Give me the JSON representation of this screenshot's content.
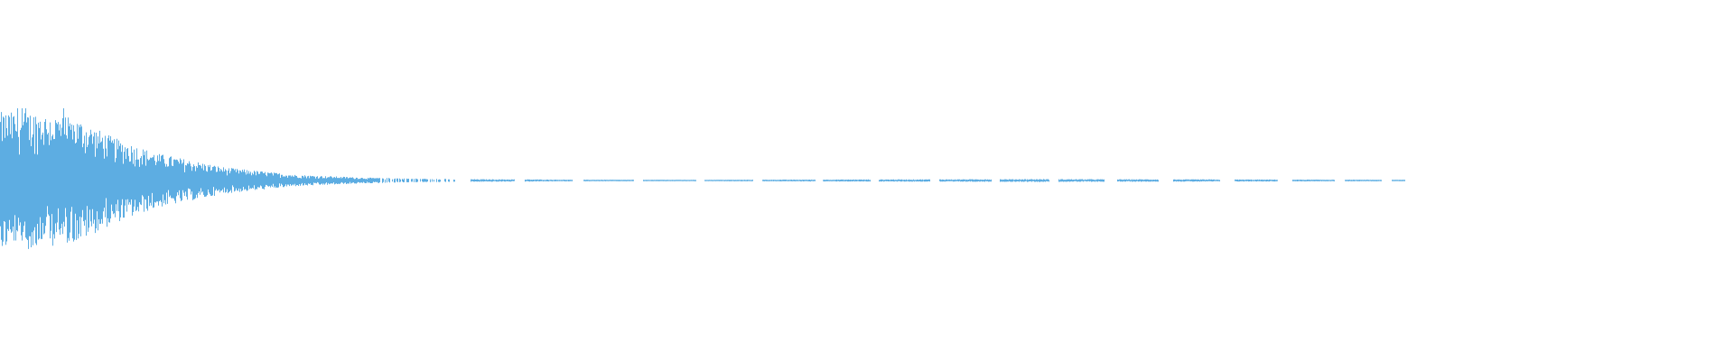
{
  "chart_data": {
    "type": "area",
    "kind": "audio-waveform",
    "title": "",
    "xlabel": "",
    "ylabel": "",
    "ylim": [
      -1,
      1
    ],
    "grid": false,
    "axes_visible": false,
    "series": [
      {
        "color": "#5dade2",
        "peak_envelope": {
          "t": [
            0.0,
            0.02,
            0.045,
            0.065,
            0.09,
            0.13,
            0.17,
            0.21,
            0.26,
            0.33,
            0.4,
            0.6,
            0.81
          ],
          "amplitude": [
            0.95,
            0.95,
            0.85,
            0.6,
            0.38,
            0.18,
            0.08,
            0.04,
            0.02,
            0.012,
            0.01,
            0.02,
            0.01
          ]
        },
        "ends_at_t": 0.81
      }
    ]
  },
  "colors": {
    "background": "#ffffff",
    "waveform": "#5dade2"
  }
}
